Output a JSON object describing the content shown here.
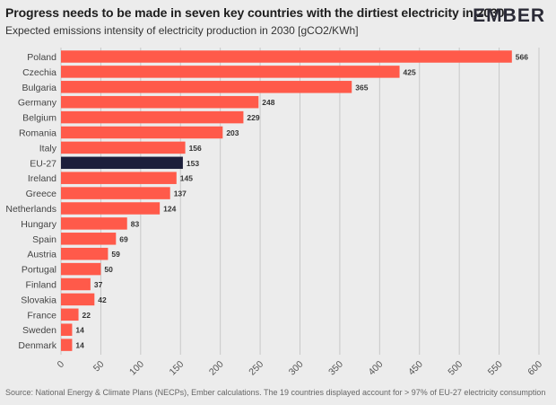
{
  "header": {
    "title": "Progress needs to be made in seven key countries with the dirtiest electricity in 2030",
    "subtitle": "Expected emissions intensity of electricity production in 2030 [gCO2/KWh]",
    "logo_text": "EMBER"
  },
  "footer": {
    "source": "Source: National Energy & Climate Plans (NECPs), Ember calculations. The 19 countries displayed account for > 97% of EU-27 electricity consumption"
  },
  "colors": {
    "bar": "#ff5a4a",
    "highlight": "#1c1f3b",
    "grid": "#c8c8c8",
    "background": "#ececec"
  },
  "chart_data": {
    "type": "bar",
    "orientation": "horizontal",
    "categories": [
      "Poland",
      "Czechia",
      "Bulgaria",
      "Germany",
      "Belgium",
      "Romania",
      "Italy",
      "EU-27",
      "Ireland",
      "Greece",
      "Netherlands",
      "Hungary",
      "Spain",
      "Austria",
      "Portugal",
      "Finland",
      "Slovakia",
      "France",
      "Sweden",
      "Denmark"
    ],
    "values": [
      566,
      425,
      365,
      248,
      229,
      203,
      156,
      153,
      145,
      137,
      124,
      83,
      69,
      59,
      50,
      37,
      42,
      22,
      14,
      14
    ],
    "highlight": "EU-27",
    "xlim": [
      0,
      600
    ],
    "xticks": [
      0,
      50,
      100,
      150,
      200,
      250,
      300,
      350,
      400,
      450,
      500,
      550,
      600
    ],
    "grid": true,
    "data_labels": true
  }
}
